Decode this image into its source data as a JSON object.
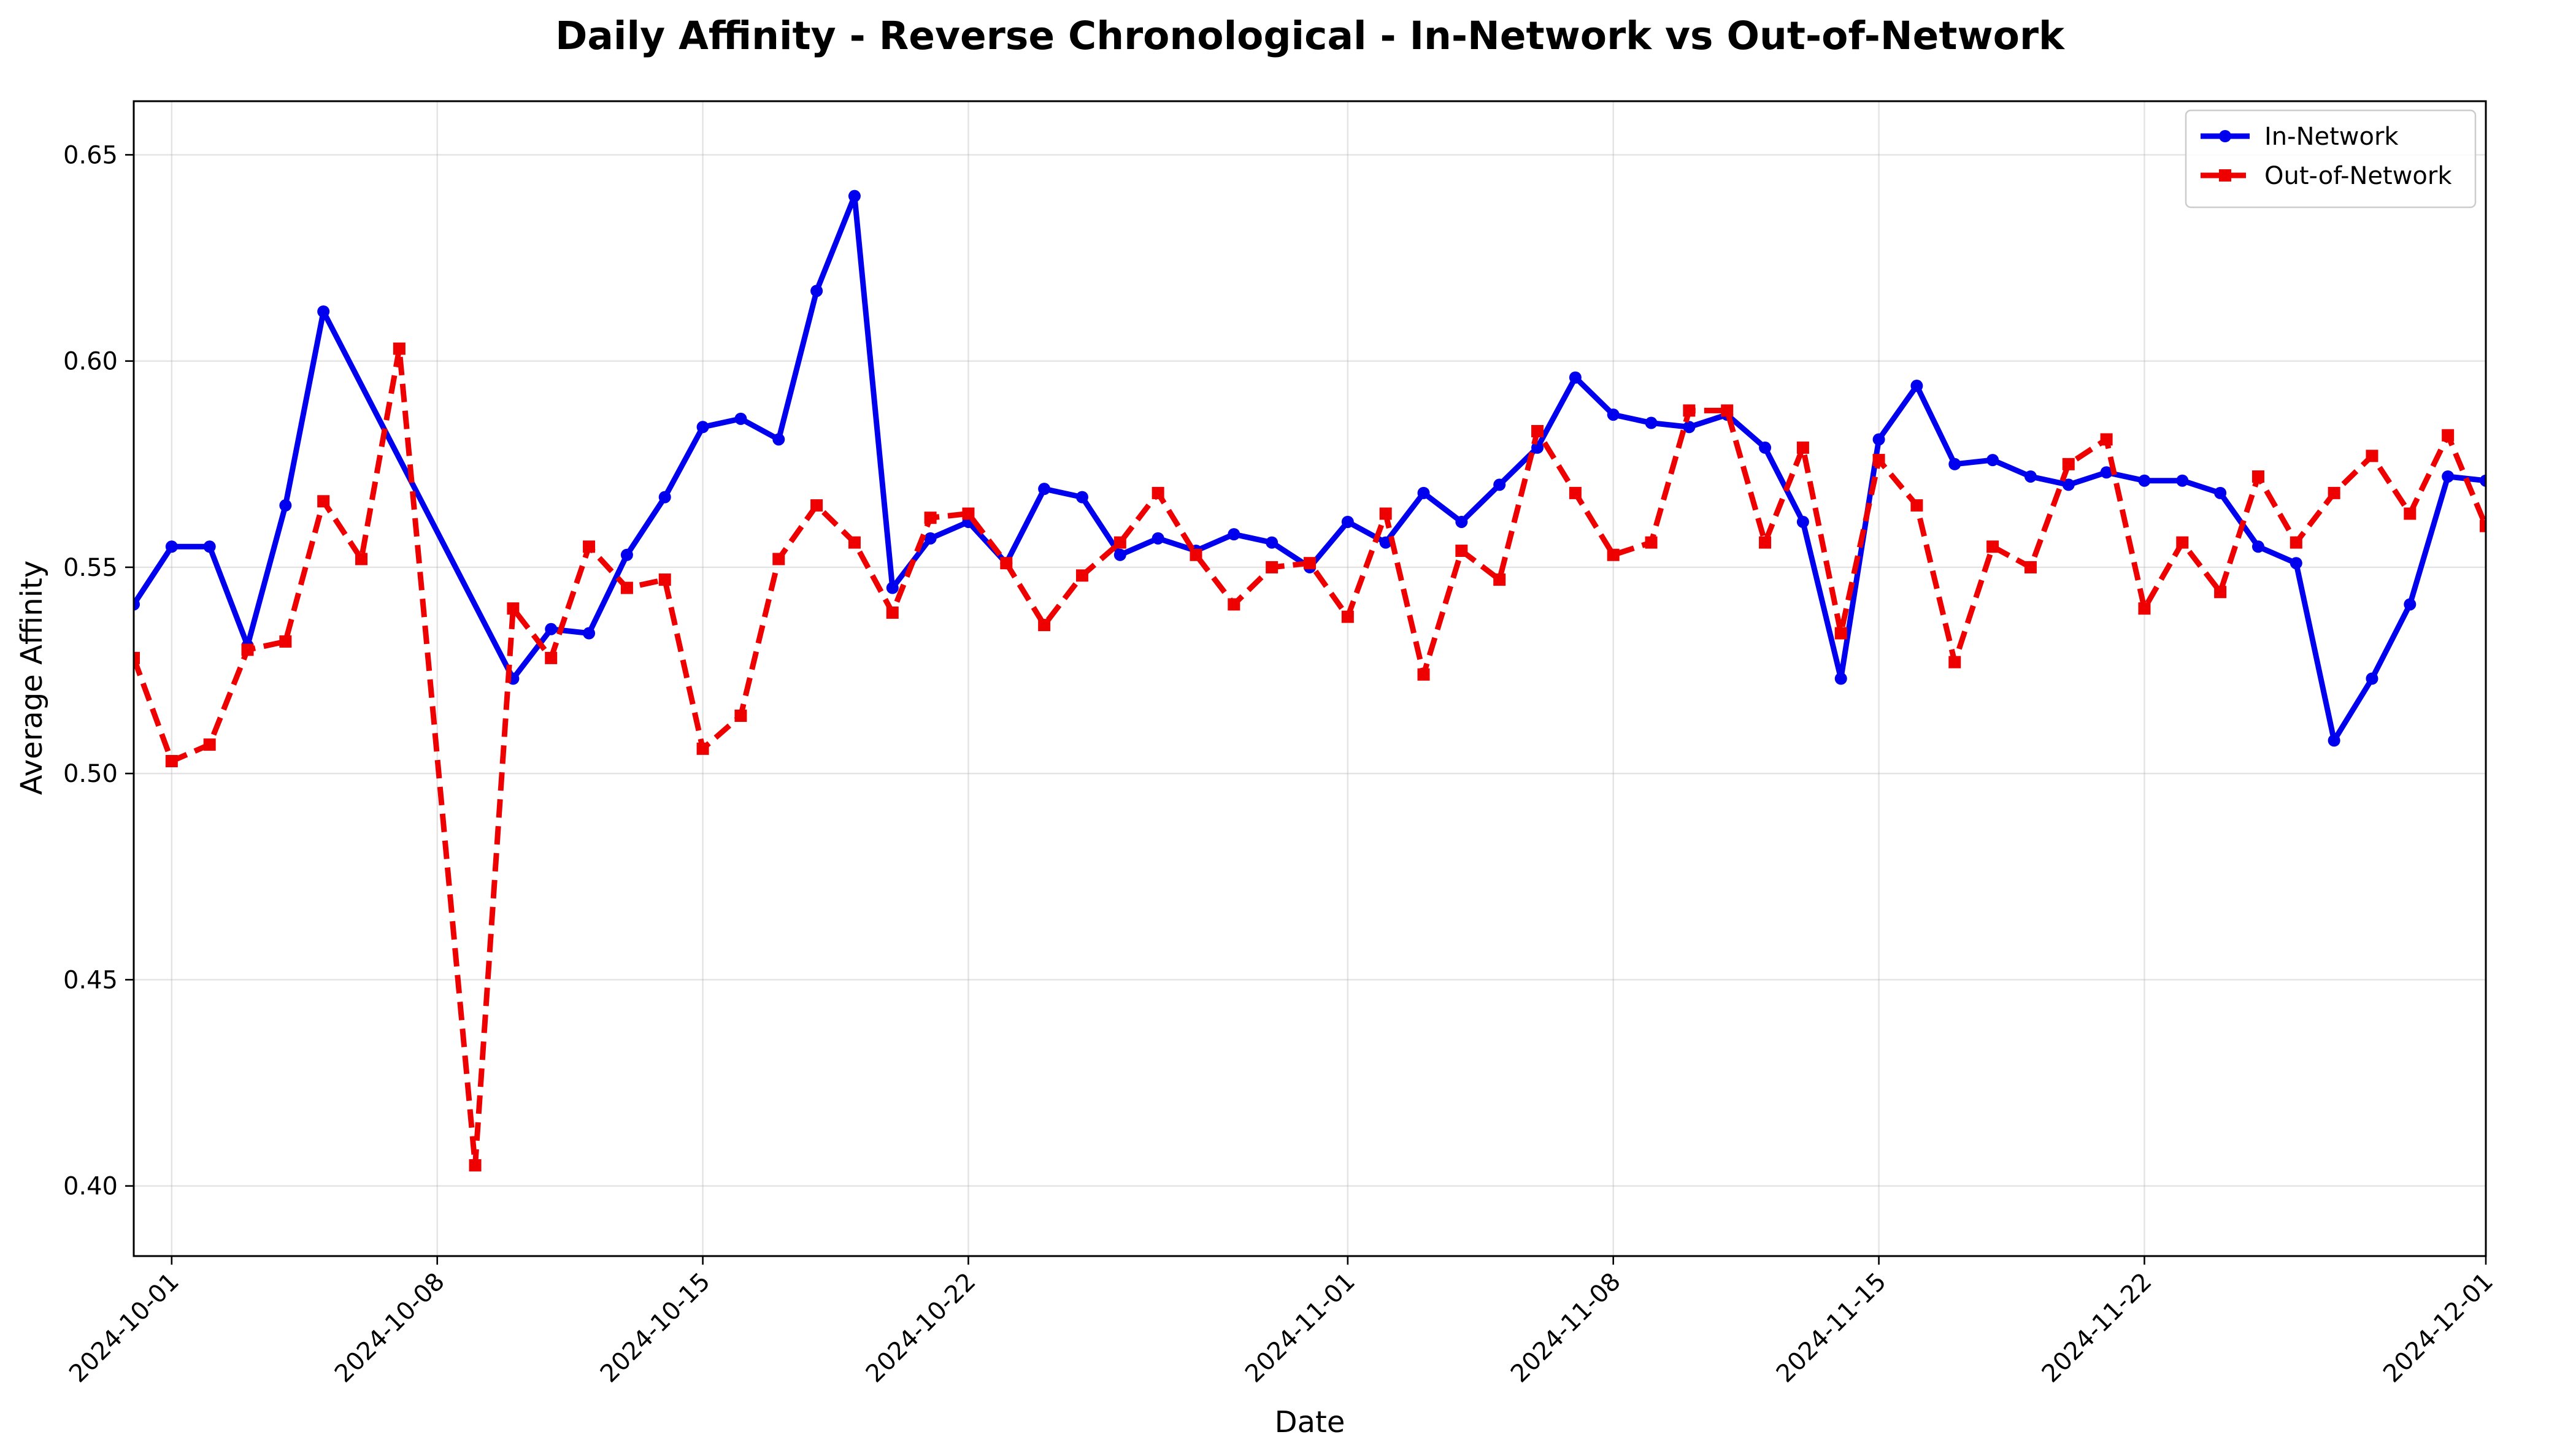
{
  "chart_data": {
    "type": "line",
    "title": "Daily Affinity - Reverse Chronological - In-Network vs Out-of-Network",
    "xlabel": "Date",
    "ylabel": "Average Affinity",
    "xlim": [
      "2024-09-30",
      "2024-12-01"
    ],
    "ylim": [
      0.383,
      0.663
    ],
    "grid": true,
    "legend_position": "top-right",
    "x_ticks": [
      "2024-10-01",
      "2024-10-08",
      "2024-10-15",
      "2024-10-22",
      "2024-11-01",
      "2024-11-08",
      "2024-11-15",
      "2024-11-22",
      "2024-12-01"
    ],
    "y_ticks": [
      "0.40",
      "0.45",
      "0.50",
      "0.55",
      "0.60",
      "0.65"
    ],
    "series": [
      {
        "name": "In-Network",
        "color": "#0000ee",
        "line_style": "solid",
        "marker": "circle",
        "points": [
          [
            "2024-09-30",
            0.541
          ],
          [
            "2024-10-01",
            0.555
          ],
          [
            "2024-10-02",
            0.555
          ],
          [
            "2024-10-03",
            0.531
          ],
          [
            "2024-10-04",
            0.565
          ],
          [
            "2024-10-05",
            0.612
          ],
          [
            "2024-10-10",
            0.523
          ],
          [
            "2024-10-11",
            0.535
          ],
          [
            "2024-10-12",
            0.534
          ],
          [
            "2024-10-13",
            0.553
          ],
          [
            "2024-10-14",
            0.567
          ],
          [
            "2024-10-15",
            0.584
          ],
          [
            "2024-10-16",
            0.586
          ],
          [
            "2024-10-17",
            0.581
          ],
          [
            "2024-10-18",
            0.617
          ],
          [
            "2024-10-19",
            0.64
          ],
          [
            "2024-10-20",
            0.545
          ],
          [
            "2024-10-21",
            0.557
          ],
          [
            "2024-10-22",
            0.561
          ],
          [
            "2024-10-23",
            0.551
          ],
          [
            "2024-10-24",
            0.569
          ],
          [
            "2024-10-25",
            0.567
          ],
          [
            "2024-10-26",
            0.553
          ],
          [
            "2024-10-27",
            0.557
          ],
          [
            "2024-10-28",
            0.554
          ],
          [
            "2024-10-29",
            0.558
          ],
          [
            "2024-10-30",
            0.556
          ],
          [
            "2024-10-31",
            0.55
          ],
          [
            "2024-11-01",
            0.561
          ],
          [
            "2024-11-02",
            0.556
          ],
          [
            "2024-11-03",
            0.568
          ],
          [
            "2024-11-04",
            0.561
          ],
          [
            "2024-11-05",
            0.57
          ],
          [
            "2024-11-06",
            0.579
          ],
          [
            "2024-11-07",
            0.596
          ],
          [
            "2024-11-08",
            0.587
          ],
          [
            "2024-11-09",
            0.585
          ],
          [
            "2024-11-10",
            0.584
          ],
          [
            "2024-11-11",
            0.587
          ],
          [
            "2024-11-12",
            0.579
          ],
          [
            "2024-11-13",
            0.561
          ],
          [
            "2024-11-14",
            0.523
          ],
          [
            "2024-11-15",
            0.581
          ],
          [
            "2024-11-16",
            0.594
          ],
          [
            "2024-11-17",
            0.575
          ],
          [
            "2024-11-18",
            0.576
          ],
          [
            "2024-11-19",
            0.572
          ],
          [
            "2024-11-20",
            0.57
          ],
          [
            "2024-11-21",
            0.573
          ],
          [
            "2024-11-22",
            0.571
          ],
          [
            "2024-11-23",
            0.571
          ],
          [
            "2024-11-24",
            0.568
          ],
          [
            "2024-11-25",
            0.555
          ],
          [
            "2024-11-26",
            0.551
          ],
          [
            "2024-11-27",
            0.508
          ],
          [
            "2024-11-28",
            0.523
          ],
          [
            "2024-11-29",
            0.541
          ],
          [
            "2024-11-30",
            0.572
          ],
          [
            "2024-12-01",
            0.571
          ]
        ]
      },
      {
        "name": "Out-of-Network",
        "color": "#ee0000",
        "line_style": "dashed",
        "marker": "square",
        "points": [
          [
            "2024-09-30",
            0.528
          ],
          [
            "2024-10-01",
            0.503
          ],
          [
            "2024-10-02",
            0.507
          ],
          [
            "2024-10-03",
            0.53
          ],
          [
            "2024-10-04",
            0.532
          ],
          [
            "2024-10-05",
            0.566
          ],
          [
            "2024-10-06",
            0.552
          ],
          [
            "2024-10-07",
            0.603
          ],
          [
            "2024-10-09",
            0.405
          ],
          [
            "2024-10-10",
            0.54
          ],
          [
            "2024-10-11",
            0.528
          ],
          [
            "2024-10-12",
            0.555
          ],
          [
            "2024-10-13",
            0.545
          ],
          [
            "2024-10-14",
            0.547
          ],
          [
            "2024-10-15",
            0.506
          ],
          [
            "2024-10-16",
            0.514
          ],
          [
            "2024-10-17",
            0.552
          ],
          [
            "2024-10-18",
            0.565
          ],
          [
            "2024-10-19",
            0.556
          ],
          [
            "2024-10-20",
            0.539
          ],
          [
            "2024-10-21",
            0.562
          ],
          [
            "2024-10-22",
            0.563
          ],
          [
            "2024-10-23",
            0.551
          ],
          [
            "2024-10-24",
            0.536
          ],
          [
            "2024-10-25",
            0.548
          ],
          [
            "2024-10-26",
            0.556
          ],
          [
            "2024-10-27",
            0.568
          ],
          [
            "2024-10-28",
            0.553
          ],
          [
            "2024-10-29",
            0.541
          ],
          [
            "2024-10-30",
            0.55
          ],
          [
            "2024-10-31",
            0.551
          ],
          [
            "2024-11-01",
            0.538
          ],
          [
            "2024-11-02",
            0.563
          ],
          [
            "2024-11-03",
            0.524
          ],
          [
            "2024-11-04",
            0.554
          ],
          [
            "2024-11-05",
            0.547
          ],
          [
            "2024-11-06",
            0.583
          ],
          [
            "2024-11-07",
            0.568
          ],
          [
            "2024-11-08",
            0.553
          ],
          [
            "2024-11-09",
            0.556
          ],
          [
            "2024-11-10",
            0.588
          ],
          [
            "2024-11-11",
            0.588
          ],
          [
            "2024-11-12",
            0.556
          ],
          [
            "2024-11-13",
            0.579
          ],
          [
            "2024-11-14",
            0.534
          ],
          [
            "2024-11-15",
            0.576
          ],
          [
            "2024-11-16",
            0.565
          ],
          [
            "2024-11-17",
            0.527
          ],
          [
            "2024-11-18",
            0.555
          ],
          [
            "2024-11-19",
            0.55
          ],
          [
            "2024-11-20",
            0.575
          ],
          [
            "2024-11-21",
            0.581
          ],
          [
            "2024-11-22",
            0.54
          ],
          [
            "2024-11-23",
            0.556
          ],
          [
            "2024-11-24",
            0.544
          ],
          [
            "2024-11-25",
            0.572
          ],
          [
            "2024-11-26",
            0.556
          ],
          [
            "2024-11-27",
            0.568
          ],
          [
            "2024-11-28",
            0.577
          ],
          [
            "2024-11-29",
            0.563
          ],
          [
            "2024-11-30",
            0.582
          ],
          [
            "2024-12-01",
            0.56
          ]
        ]
      }
    ]
  }
}
